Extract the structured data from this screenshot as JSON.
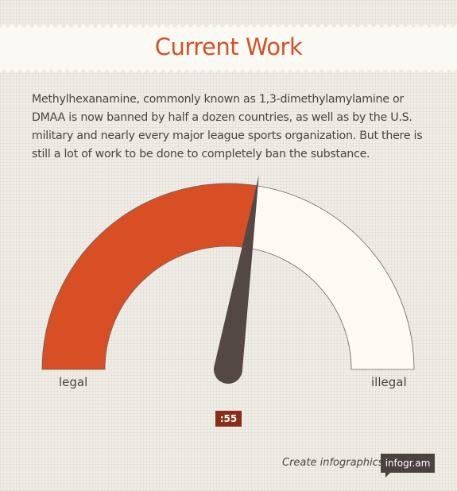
{
  "header": {
    "title": "Current Work"
  },
  "intro": {
    "text": "Methylhexanamine, commonly known as 1,3-dimethylamylamine or DMAA is now banned by half a dozen countries, as well as by the U.S. military and nearly every major league sports organization. But there is still a lot of work to be done to completely ban the substance."
  },
  "chart_data": {
    "type": "gauge",
    "value": 55,
    "range": [
      0,
      100
    ],
    "min_label": "legal",
    "max_label": "illegal",
    "value_label": ":55",
    "colors": {
      "filled": "#d84f26",
      "empty": "#fdfaf3",
      "needle": "#544844"
    }
  },
  "footer": {
    "credit_text": "Create infographics",
    "brand_text": "infogr.am"
  }
}
